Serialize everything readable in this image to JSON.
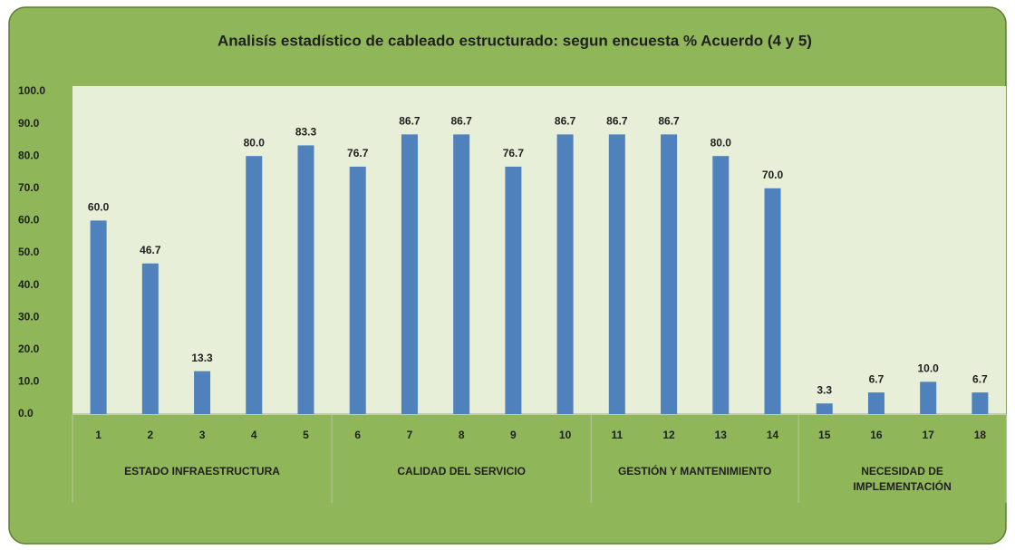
{
  "chart_data": {
    "type": "bar",
    "title": "Analisís estadístico de cableado estructurado: segun encuesta  % Acuerdo (4 y 5)",
    "color": "#4f81bd",
    "ylim": [
      0,
      100
    ],
    "yticks": [
      {
        "value": 0,
        "label": "0.0"
      },
      {
        "value": 10,
        "label": "10.0"
      },
      {
        "value": 20,
        "label": "20.0"
      },
      {
        "value": 30,
        "label": "30.0"
      },
      {
        "value": 40,
        "label": "40.0"
      },
      {
        "value": 50,
        "label": "50.0"
      },
      {
        "value": 60,
        "label": "60.0"
      },
      {
        "value": 70,
        "label": "70.0"
      },
      {
        "value": 80,
        "label": "80.0"
      },
      {
        "value": 90,
        "label": "90.0"
      },
      {
        "value": 100,
        "label": "100.0"
      }
    ],
    "grid": false,
    "groups": [
      {
        "label": "ESTADO INFRAESTRUCTURA",
        "categories": [
          "1",
          "2",
          "3",
          "4",
          "5"
        ],
        "values": [
          60,
          46.7,
          13.3,
          80,
          83.3
        ],
        "value_labels": [
          "60.0",
          "46.7",
          "13.3",
          "80.0",
          "83.3"
        ]
      },
      {
        "label": "CALIDAD DEL SERVICIO",
        "categories": [
          "6",
          "7",
          "8",
          "9",
          "10"
        ],
        "values": [
          76.7,
          86.7,
          86.7,
          76.7,
          86.7
        ],
        "value_labels": [
          "76.7",
          "86.7",
          "86.7",
          "76.7",
          "86.7"
        ]
      },
      {
        "label": "GESTIÓN Y MANTENIMIENTO",
        "categories": [
          "11",
          "12",
          "13",
          "14"
        ],
        "values": [
          86.7,
          86.7,
          80,
          70
        ],
        "value_labels": [
          "86.7",
          "86.7",
          "80.0",
          "70.0"
        ]
      },
      {
        "label": "NECESIDAD DE\nIMPLEMENTACIÓN",
        "categories": [
          "15",
          "16",
          "17",
          "18"
        ],
        "values": [
          3.3,
          6.7,
          10,
          6.7
        ],
        "value_labels": [
          "3.3",
          "6.7",
          "10.0",
          "6.7"
        ]
      }
    ]
  }
}
